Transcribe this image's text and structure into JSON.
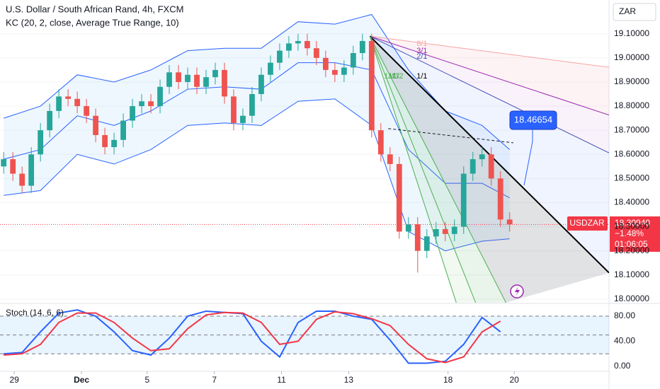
{
  "chart_data": {
    "type": "candlestick",
    "title": "U.S. Dollar / South African Rand, 4h, FXCM",
    "indicator_label": "KC (20, 2, close, Average True Range, 10)",
    "currency": "ZAR",
    "symbol": "USDZAR",
    "last_price": {
      "value": 18.3094,
      "label": "18.30940"
    },
    "change": "−1.48%",
    "countdown": "01:06:05",
    "callout": "18.46654",
    "xlim": [
      -0.4,
      65.8
    ],
    "ylim": [
      17.985,
      19.24
    ],
    "xticks": [
      {
        "value": 1.15,
        "label": "29"
      },
      {
        "value": 8.46,
        "label": "Dec"
      },
      {
        "value": 15.6,
        "label": "5"
      },
      {
        "value": 22.9,
        "label": "7"
      },
      {
        "value": 30.2,
        "label": "11"
      },
      {
        "value": 37.5,
        "label": "13"
      },
      {
        "value": 48.3,
        "label": "18"
      },
      {
        "value": 55.5,
        "label": "20"
      }
    ],
    "yticks": [
      {
        "value": 18.0,
        "label": "18.00000"
      },
      {
        "value": 18.1,
        "label": "18.10000"
      },
      {
        "value": 18.2,
        "label": "18.20000"
      },
      {
        "value": 18.3,
        "label": "18.30000"
      },
      {
        "value": 18.4,
        "label": "18.40000"
      },
      {
        "value": 18.5,
        "label": "18.50000"
      },
      {
        "value": 18.6,
        "label": "18.60000"
      },
      {
        "value": 18.7,
        "label": "18.70000"
      },
      {
        "value": 18.8,
        "label": "18.80000"
      },
      {
        "value": 18.9,
        "label": "18.90000"
      },
      {
        "value": 19.0,
        "label": "19.00000"
      },
      {
        "value": 19.1,
        "label": "19.10000"
      }
    ],
    "up_color": "#26a69a",
    "down_color": "#ef5350",
    "open": [
      18.55,
      18.58,
      18.52,
      18.47,
      18.6,
      18.7,
      18.78,
      18.84,
      18.83,
      18.8,
      18.76,
      18.68,
      18.63,
      18.66,
      18.74,
      18.8,
      18.82,
      18.8,
      18.88,
      18.94,
      18.9,
      18.93,
      18.88,
      18.92,
      18.95,
      18.84,
      18.73,
      18.76,
      18.85,
      18.93,
      18.98,
      19.03,
      19.06,
      19.07,
      19.04,
      19.0,
      18.95,
      18.93,
      18.96,
      19.02,
      19.07,
      18.7,
      18.6,
      18.56,
      18.28,
      18.31,
      18.2,
      18.26,
      18.29,
      18.27,
      18.3,
      18.52,
      18.58,
      18.6,
      18.5,
      18.33
    ],
    "high": [
      18.61,
      18.61,
      18.55,
      18.63,
      18.73,
      18.81,
      18.87,
      18.87,
      18.86,
      18.83,
      18.79,
      18.71,
      18.69,
      18.77,
      18.83,
      18.85,
      18.85,
      18.91,
      18.97,
      18.97,
      18.96,
      18.96,
      18.95,
      18.98,
      18.98,
      18.87,
      18.79,
      18.88,
      18.96,
      19.01,
      19.06,
      19.09,
      19.1,
      19.1,
      19.07,
      19.03,
      18.98,
      18.99,
      19.05,
      19.1,
      19.1,
      18.73,
      18.63,
      18.59,
      18.34,
      18.34,
      18.29,
      18.32,
      18.32,
      18.33,
      18.55,
      18.61,
      18.63,
      18.63,
      18.53,
      18.36
    ],
    "low": [
      18.52,
      18.49,
      18.44,
      18.44,
      18.57,
      18.67,
      18.75,
      18.8,
      18.77,
      18.73,
      18.65,
      18.6,
      18.6,
      18.63,
      18.71,
      18.77,
      18.77,
      18.77,
      18.85,
      18.87,
      18.87,
      18.85,
      18.85,
      18.89,
      18.81,
      18.7,
      18.7,
      18.73,
      18.82,
      18.9,
      18.95,
      19.0,
      19.03,
      19.01,
      18.97,
      18.92,
      18.9,
      18.9,
      18.93,
      18.99,
      18.67,
      18.57,
      18.53,
      18.25,
      18.25,
      18.11,
      18.17,
      18.23,
      18.24,
      18.24,
      18.27,
      18.49,
      18.55,
      18.47,
      18.3,
      18.28
    ],
    "close": [
      18.58,
      18.52,
      18.47,
      18.6,
      18.7,
      18.78,
      18.84,
      18.83,
      18.8,
      18.76,
      18.68,
      18.63,
      18.66,
      18.74,
      18.8,
      18.82,
      18.8,
      18.88,
      18.94,
      18.9,
      18.93,
      18.88,
      18.92,
      18.95,
      18.84,
      18.73,
      18.76,
      18.85,
      18.93,
      18.98,
      19.03,
      19.06,
      19.07,
      19.04,
      19.0,
      18.95,
      18.93,
      18.96,
      19.02,
      19.07,
      18.7,
      18.6,
      18.56,
      18.28,
      18.31,
      18.2,
      18.26,
      18.29,
      18.27,
      18.3,
      18.52,
      18.58,
      18.6,
      18.5,
      18.33,
      18.31
    ],
    "kc": {
      "color": "#2962ff",
      "fill": "rgba(33,150,243,0.08)",
      "x": [
        0,
        4,
        8,
        12,
        16,
        20,
        24,
        28,
        32,
        36,
        40,
        44,
        48,
        52,
        55
      ],
      "upper": [
        18.75,
        18.8,
        18.93,
        18.9,
        18.95,
        19.03,
        19.04,
        19.04,
        19.15,
        19.14,
        19.18,
        18.95,
        18.78,
        18.72,
        18.62
      ],
      "mid": [
        18.58,
        18.62,
        18.76,
        18.72,
        18.78,
        18.87,
        18.88,
        18.87,
        18.98,
        18.98,
        18.95,
        18.62,
        18.48,
        18.48,
        18.42
      ],
      "lower": [
        18.43,
        18.45,
        18.6,
        18.56,
        18.62,
        18.72,
        18.73,
        18.72,
        18.82,
        18.83,
        18.72,
        18.28,
        18.2,
        18.24,
        18.25
      ]
    },
    "fan": [
      {
        "label": "8/1",
        "color": "#f7a4a4",
        "fill": "rgba(242,54,69,0.06)",
        "x": [
          39.8,
          65.8
        ],
        "y": [
          19.09,
          18.961
        ]
      },
      {
        "label": "3/1",
        "color": "#9c27b0",
        "fill": "rgba(156,39,176,0.06)",
        "x": [
          39.8,
          65.8
        ],
        "y": [
          19.09,
          18.763
        ]
      },
      {
        "label": "2/1",
        "color": "#3f51b5",
        "fill": "rgba(41,98,255,0.07)",
        "x": [
          39.8,
          65.8
        ],
        "y": [
          19.09,
          18.606
        ]
      },
      {
        "label": "1/1",
        "color": "#000000",
        "fill": "rgba(120,123,134,0.22)",
        "x": [
          39.8,
          65.8
        ],
        "y": [
          19.09,
          18.109
        ]
      },
      {
        "label": "1/2",
        "color": "#4caf50",
        "fill": "rgba(76,175,80,0.12)",
        "x": [
          39.8,
          54.6
        ],
        "y": [
          19.09,
          17.985
        ]
      },
      {
        "label": "1/3",
        "color": "#4caf50",
        "fill": "rgba(76,175,80,0.08)",
        "x": [
          39.8,
          51.3
        ],
        "y": [
          19.09,
          17.985
        ]
      },
      {
        "label": "1/4",
        "color": "#4caf50",
        "x": [
          39.8,
          49.2
        ],
        "y": [
          19.09,
          17.985
        ]
      }
    ],
    "trend_line": {
      "x": [
        41.8,
        55.4
      ],
      "y": [
        18.707,
        18.648
      ]
    },
    "stoch": {
      "label": "Stoch (14, 6, 6)",
      "ylim": [
        -8,
        97
      ],
      "yticks": [
        {
          "value": 0,
          "label": "0.00"
        },
        {
          "value": 40,
          "label": "40.00"
        },
        {
          "value": 80,
          "label": "80.00"
        }
      ],
      "levels": [
        20,
        50,
        80
      ],
      "x": [
        0,
        2,
        4,
        6,
        8,
        10,
        12,
        14,
        16,
        18,
        20,
        22,
        24,
        26,
        28,
        30,
        32,
        34,
        36,
        38,
        40,
        42,
        44,
        46,
        48,
        50,
        52,
        54
      ],
      "series": [
        {
          "color": "#2962ff",
          "values": [
            20,
            22,
            55,
            85,
            90,
            80,
            55,
            25,
            18,
            45,
            80,
            88,
            86,
            84,
            40,
            15,
            70,
            88,
            88,
            80,
            75,
            42,
            5,
            5,
            8,
            35,
            78,
            55
          ]
        },
        {
          "color": "#f23645",
          "values": [
            18,
            20,
            35,
            70,
            85,
            85,
            70,
            45,
            25,
            28,
            60,
            82,
            86,
            85,
            70,
            35,
            40,
            75,
            87,
            84,
            76,
            65,
            35,
            12,
            6,
            15,
            55,
            72
          ]
        }
      ]
    }
  }
}
